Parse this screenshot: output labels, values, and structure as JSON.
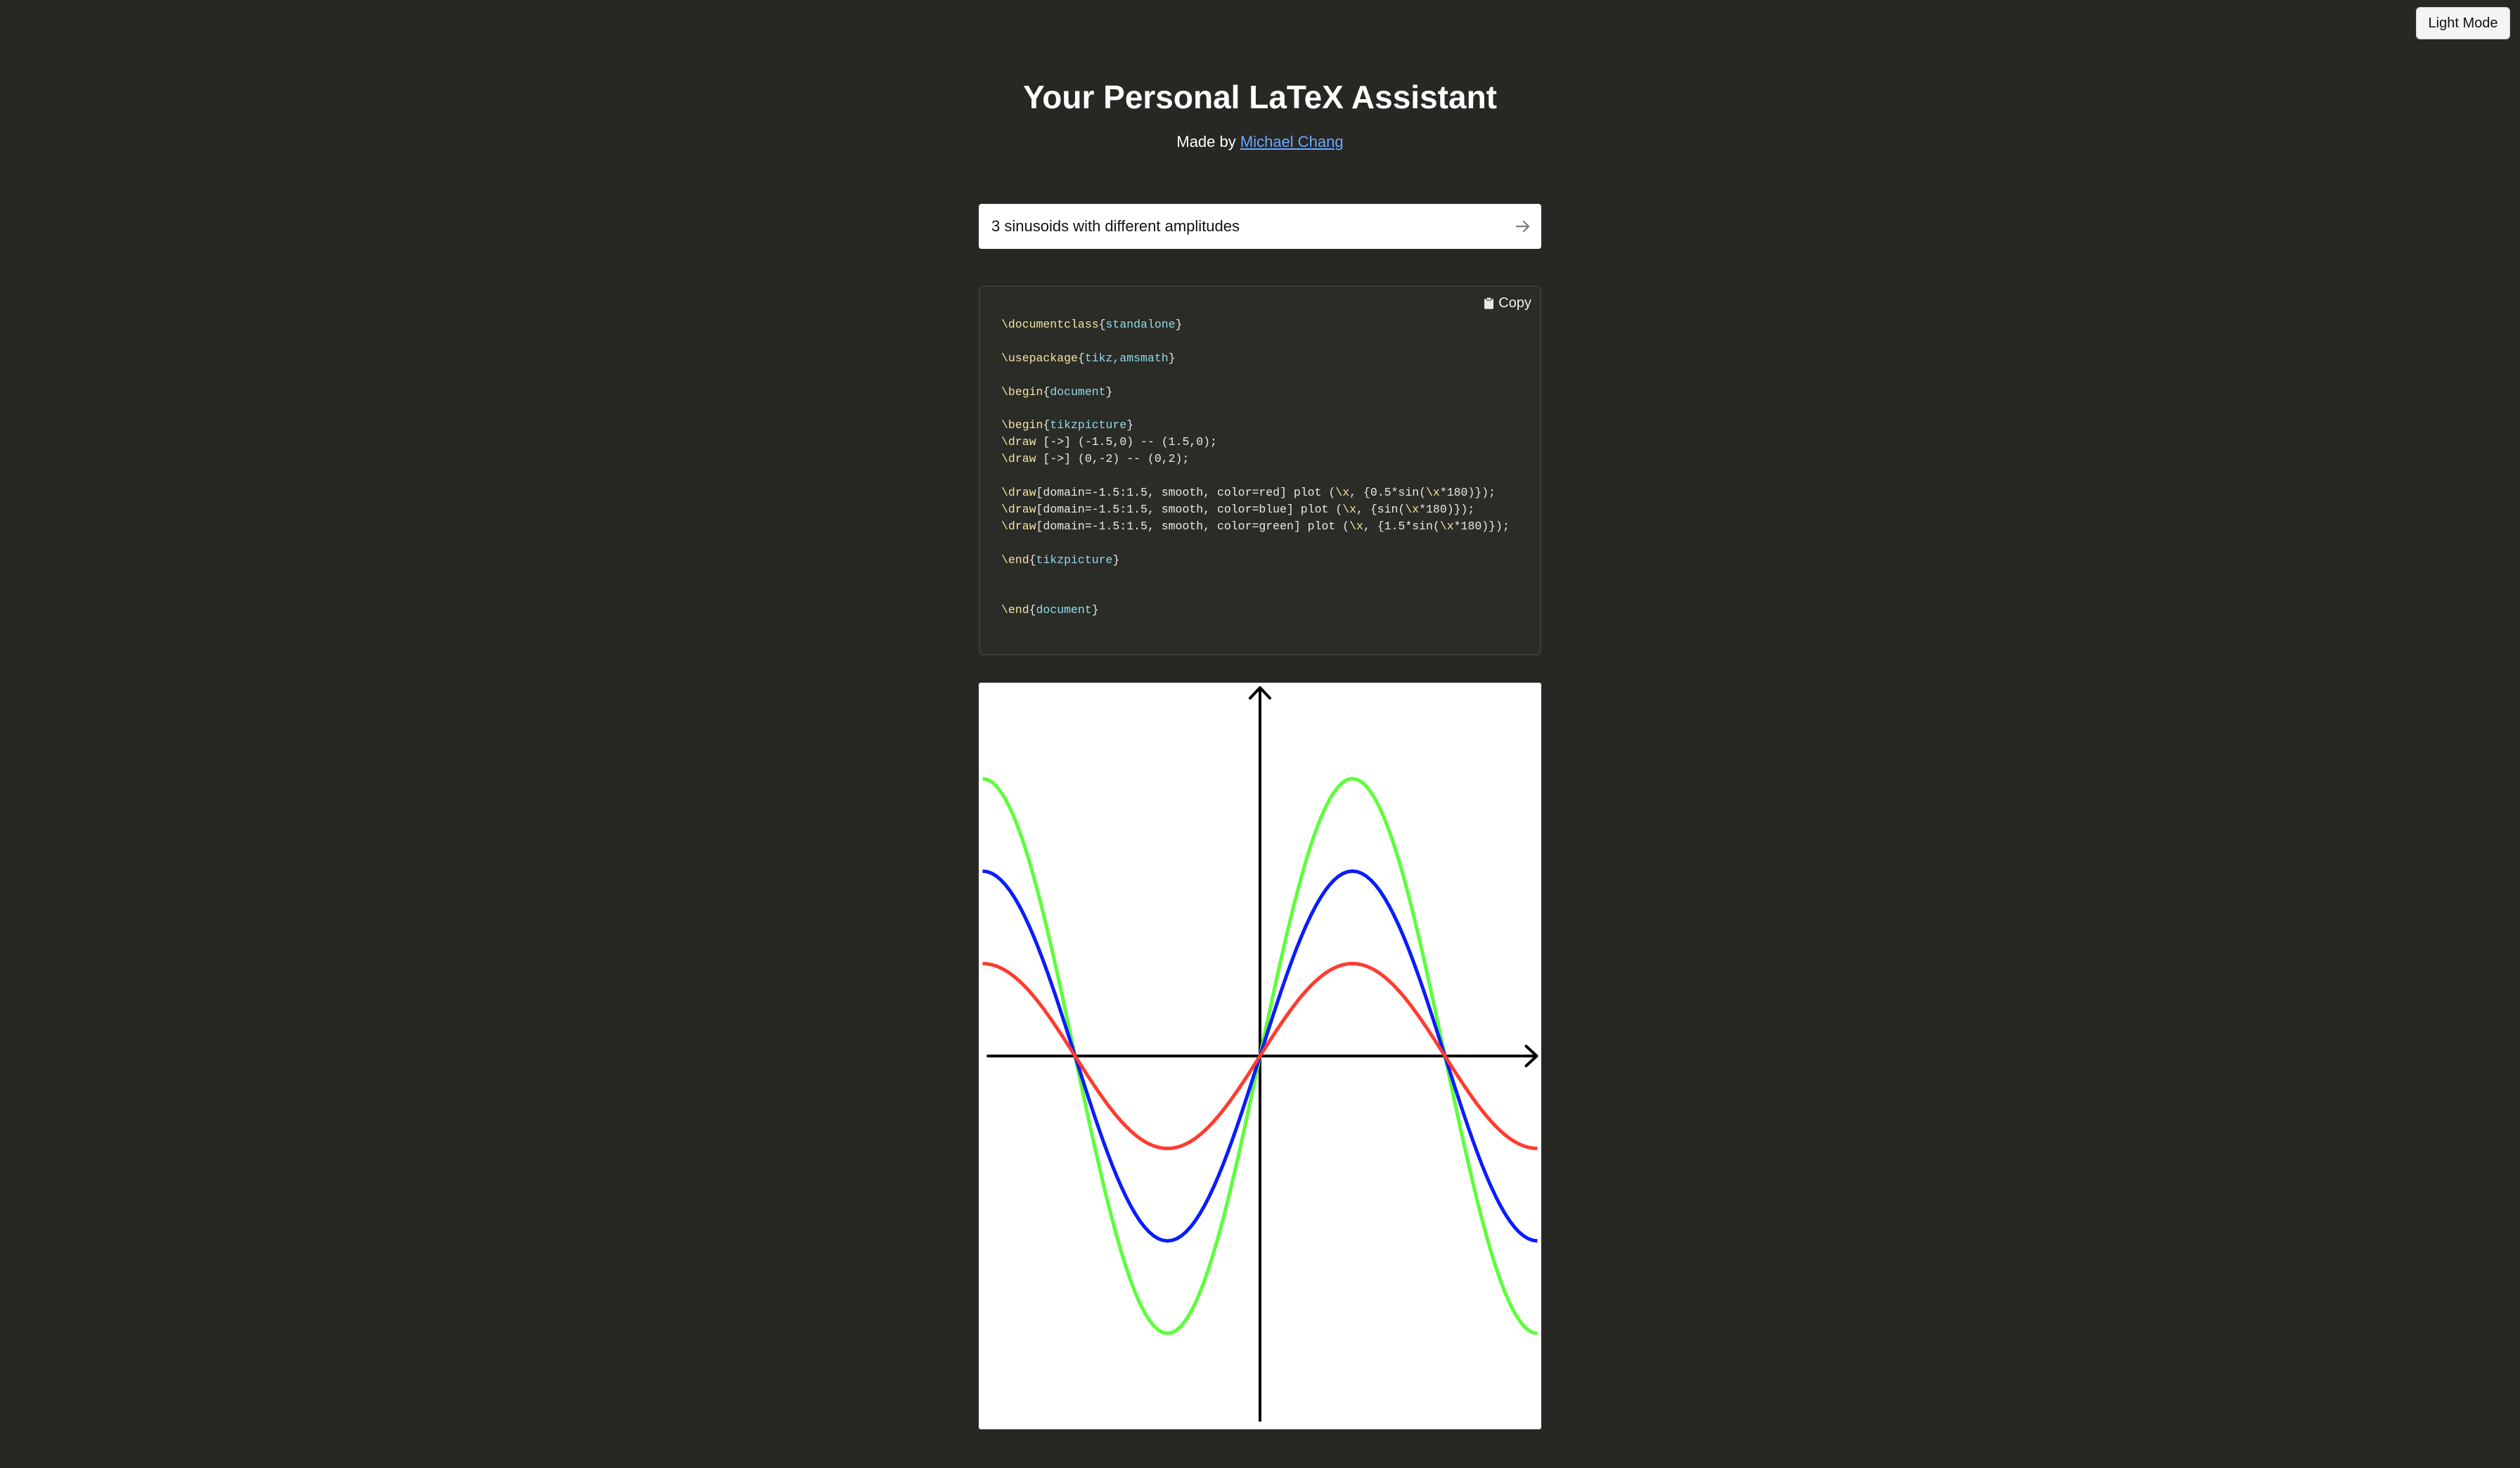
{
  "header": {
    "mode_button": "Light Mode",
    "title": "Your Personal LaTeX Assistant",
    "made_by": "Made by ",
    "author": "Michael Chang"
  },
  "prompt": {
    "value": "3 sinusoids with different amplitudes"
  },
  "icons": {
    "submit": "arrow-right-icon",
    "copy": "clipboard-icon"
  },
  "code_panel": {
    "copy_label": "Copy",
    "lines": [
      [
        {
          "t": "\\documentclass",
          "c": "cmd"
        },
        {
          "t": "{"
        },
        {
          "t": "standalone",
          "c": "arg"
        },
        {
          "t": "}"
        }
      ],
      [],
      [
        {
          "t": "\\usepackage",
          "c": "cmd"
        },
        {
          "t": "{"
        },
        {
          "t": "tikz,amsmath",
          "c": "arg"
        },
        {
          "t": "}"
        }
      ],
      [],
      [
        {
          "t": "\\begin",
          "c": "cmd"
        },
        {
          "t": "{"
        },
        {
          "t": "document",
          "c": "arg"
        },
        {
          "t": "}"
        }
      ],
      [],
      [
        {
          "t": "\\begin",
          "c": "cmd"
        },
        {
          "t": "{"
        },
        {
          "t": "tikzpicture",
          "c": "arg"
        },
        {
          "t": "}"
        }
      ],
      [
        {
          "t": "\\draw",
          "c": "cmd"
        },
        {
          "t": " [->] (-1.5,0) -- (1.5,0);"
        }
      ],
      [
        {
          "t": "\\draw",
          "c": "cmd"
        },
        {
          "t": " [->] (0,-2) -- (0,2);"
        }
      ],
      [],
      [
        {
          "t": "\\draw",
          "c": "cmd"
        },
        {
          "t": "[domain=-1.5:1.5, smooth, color=red] plot ("
        },
        {
          "t": "\\x",
          "c": "cmd"
        },
        {
          "t": ", {0.5*sin("
        },
        {
          "t": "\\x",
          "c": "cmd"
        },
        {
          "t": "*180)});"
        }
      ],
      [
        {
          "t": "\\draw",
          "c": "cmd"
        },
        {
          "t": "[domain=-1.5:1.5, smooth, color=blue] plot ("
        },
        {
          "t": "\\x",
          "c": "cmd"
        },
        {
          "t": ", {sin("
        },
        {
          "t": "\\x",
          "c": "cmd"
        },
        {
          "t": "*180)});"
        }
      ],
      [
        {
          "t": "\\draw",
          "c": "cmd"
        },
        {
          "t": "[domain=-1.5:1.5, smooth, color=green] plot ("
        },
        {
          "t": "\\x",
          "c": "cmd"
        },
        {
          "t": ", {1.5*sin("
        },
        {
          "t": "\\x",
          "c": "cmd"
        },
        {
          "t": "*180)});"
        }
      ],
      [],
      [
        {
          "t": "\\end",
          "c": "cmd"
        },
        {
          "t": "{"
        },
        {
          "t": "tikzpicture",
          "c": "arg"
        },
        {
          "t": "}"
        }
      ],
      [],
      [],
      [
        {
          "t": "\\end",
          "c": "cmd"
        },
        {
          "t": "{"
        },
        {
          "t": "document",
          "c": "arg"
        },
        {
          "t": "}"
        }
      ]
    ]
  },
  "chart_data": {
    "type": "line",
    "xlim": [
      -1.5,
      1.5
    ],
    "ylim": [
      -2,
      2
    ],
    "grid": false,
    "series": [
      {
        "color": "#ff3b30",
        "amplitude": 0.5,
        "x": [
          -1.5,
          -1,
          -0.5,
          0,
          0.5,
          1,
          1.5
        ],
        "y": [
          0.5,
          0,
          -0.5,
          0,
          0.5,
          0,
          -0.5
        ]
      },
      {
        "color": "#0a1cff",
        "amplitude": 1,
        "x": [
          -1.5,
          -1,
          -0.5,
          0,
          0.5,
          1,
          1.5
        ],
        "y": [
          1,
          0,
          -1,
          0,
          1,
          0,
          -1
        ]
      },
      {
        "color": "#5cff3a",
        "amplitude": 1.5,
        "x": [
          -1.5,
          -1,
          -0.5,
          0,
          0.5,
          1,
          1.5
        ],
        "y": [
          1.5,
          0,
          -1.5,
          0,
          1.5,
          0,
          -1.5
        ]
      }
    ]
  }
}
